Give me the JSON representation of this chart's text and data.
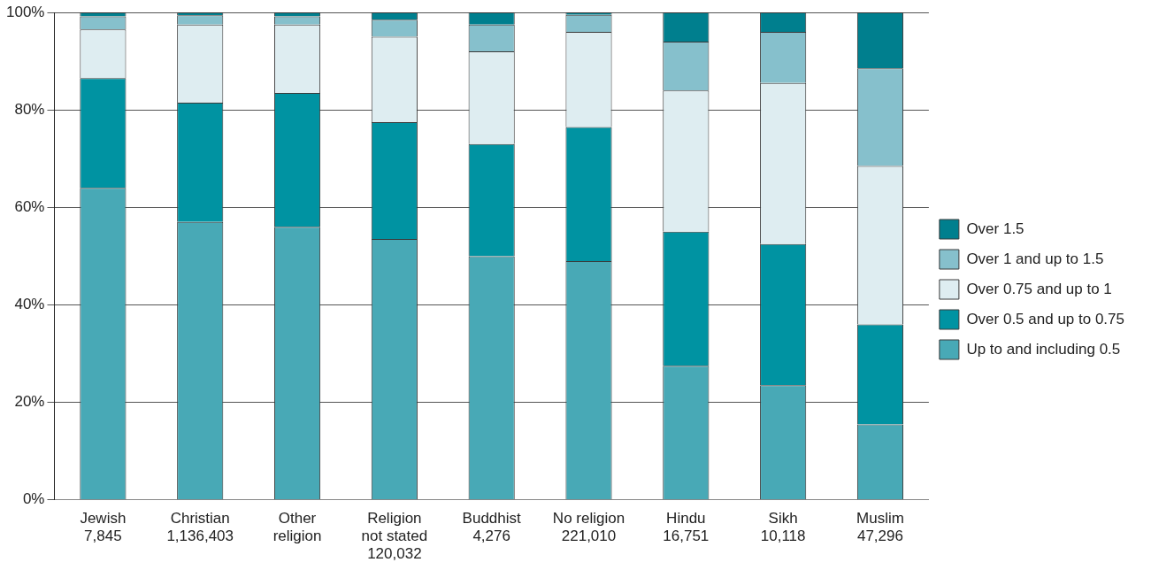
{
  "chart_data": {
    "type": "bar",
    "stacked": true,
    "categories": [
      "Jewish\n7,845",
      "Christian\n1,136,403",
      "Other\nreligion",
      "Religion\nnot stated\n120,032",
      "Buddhist\n4,276",
      "No religion\n221,010",
      "Hindu\n16,751",
      "Sikh\n10,118",
      "Muslim\n47,296"
    ],
    "series": [
      {
        "name": "Up to and including 0.5",
        "color": "#48a9b6",
        "values": [
          64,
          57,
          56,
          53.5,
          50,
          49,
          27.5,
          23.5,
          15.5
        ]
      },
      {
        "name": "Over 0.5 and up to 0.75",
        "color": "#0093a2",
        "values": [
          22.5,
          24.5,
          27.5,
          24,
          23,
          27.5,
          27.5,
          29,
          20.5
        ]
      },
      {
        "name": "Over 0.75 and up to 1",
        "color": "#deedf1",
        "values": [
          10,
          16,
          14,
          17.5,
          19,
          19.5,
          29,
          33,
          32.5
        ]
      },
      {
        "name": "Over 1 and up to 1.5",
        "color": "#86c0cc",
        "values": [
          2.7,
          1.9,
          1.7,
          3.5,
          5.5,
          3.5,
          10,
          10.5,
          20
        ]
      },
      {
        "name": "Over 1.5",
        "color": "#007f8e",
        "values": [
          0.8,
          0.6,
          0.8,
          1.5,
          2.5,
          0.5,
          6,
          4,
          11.5
        ]
      }
    ],
    "ylim": [
      0,
      100
    ],
    "yticks": [
      {
        "value": 0,
        "label": "0%"
      },
      {
        "value": 20,
        "label": "20%"
      },
      {
        "value": 40,
        "label": "40%"
      },
      {
        "value": 60,
        "label": "60%"
      },
      {
        "value": 80,
        "label": "80%"
      },
      {
        "value": 100,
        "label": "100%"
      }
    ],
    "grid": "y",
    "legend": "right"
  }
}
